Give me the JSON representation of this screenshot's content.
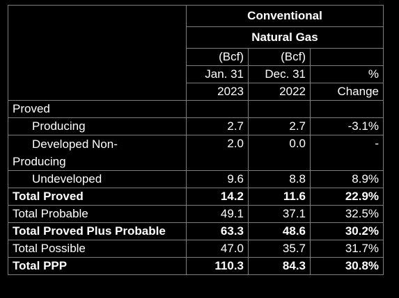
{
  "header": {
    "title_line1": "Conventional",
    "title_line2": "Natural Gas",
    "col1": {
      "unit": "(Bcf)",
      "date": "Jan. 31",
      "year": "2023"
    },
    "col2": {
      "unit": "(Bcf)",
      "date": "Dec. 31",
      "year": "2022"
    },
    "col3": {
      "line1": "%",
      "line2": "Change"
    }
  },
  "rows": {
    "proved_label": "Proved",
    "producing": {
      "label": "Producing",
      "jan": "2.7",
      "dec": "2.7",
      "change": "-3.1%"
    },
    "developed_non_producing": {
      "label_line1": "Developed Non-",
      "label_line2": "Producing",
      "jan": "2.0",
      "dec": "0.0",
      "change": "-"
    },
    "undeveloped": {
      "label": "Undeveloped",
      "jan": "9.6",
      "dec": "8.8",
      "change": "8.9%"
    },
    "total_proved": {
      "label": "Total Proved",
      "jan": "14.2",
      "dec": "11.6",
      "change": "22.9%"
    },
    "total_probable": {
      "label": "Total Probable",
      "jan": "49.1",
      "dec": "37.1",
      "change": "32.5%"
    },
    "total_proved_plus_probable": {
      "label": "Total Proved Plus Probable",
      "jan": "63.3",
      "dec": "48.6",
      "change": "30.2%"
    },
    "total_possible": {
      "label": "Total Possible",
      "jan": "47.0",
      "dec": "35.7",
      "change": "31.7%"
    },
    "total_ppp": {
      "label": "Total PPP",
      "jan": "110.3",
      "dec": "84.3",
      "change": "30.8%"
    }
  }
}
